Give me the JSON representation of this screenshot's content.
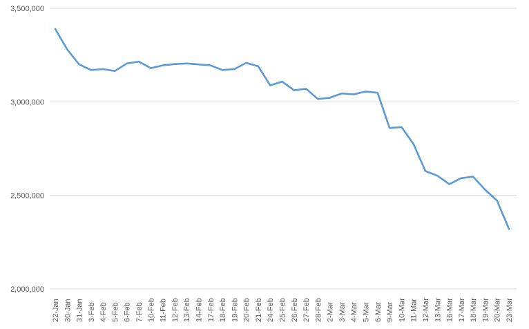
{
  "chart_data": {
    "type": "line",
    "title": "",
    "xlabel": "",
    "ylabel": "",
    "ylim": [
      2000000,
      3500000
    ],
    "yticks": [
      2000000,
      2500000,
      3000000,
      3500000
    ],
    "ytick_labels": [
      "2,000,000",
      "2,500,000",
      "3,000,000",
      "3,500,000"
    ],
    "grid": true,
    "legend": "none",
    "line_color": "#5b9bd5",
    "categories": [
      "22-Jan",
      "30-Jan",
      "31-Jan",
      "3-Feb",
      "4-Feb",
      "5-Feb",
      "6-Feb",
      "7-Feb",
      "10-Feb",
      "11-Feb",
      "12-Feb",
      "13-Feb",
      "14-Feb",
      "17-Feb",
      "18-Feb",
      "19-Feb",
      "20-Feb",
      "21-Feb",
      "24-Feb",
      "25-Feb",
      "26-Feb",
      "27-Feb",
      "28-Feb",
      "2-Mar",
      "3-Mar",
      "4-Mar",
      "5-Mar",
      "6-Mar",
      "9-Mar",
      "10-Mar",
      "11-Mar",
      "12-Mar",
      "13-Mar",
      "16-Mar",
      "17-Mar",
      "18-Mar",
      "19-Mar",
      "20-Mar",
      "23-Mar"
    ],
    "series": [
      {
        "values": [
          3390000,
          3280000,
          3200000,
          3170000,
          3175000,
          3165000,
          3205000,
          3215000,
          3180000,
          3195000,
          3202000,
          3205000,
          3200000,
          3195000,
          3170000,
          3175000,
          3208000,
          3190000,
          3088000,
          3108000,
          3062000,
          3070000,
          3015000,
          3022000,
          3045000,
          3040000,
          3055000,
          3048000,
          2860000,
          2865000,
          2775000,
          2630000,
          2605000,
          2560000,
          2592000,
          2600000,
          2530000,
          2472000,
          2320000
        ]
      }
    ]
  }
}
